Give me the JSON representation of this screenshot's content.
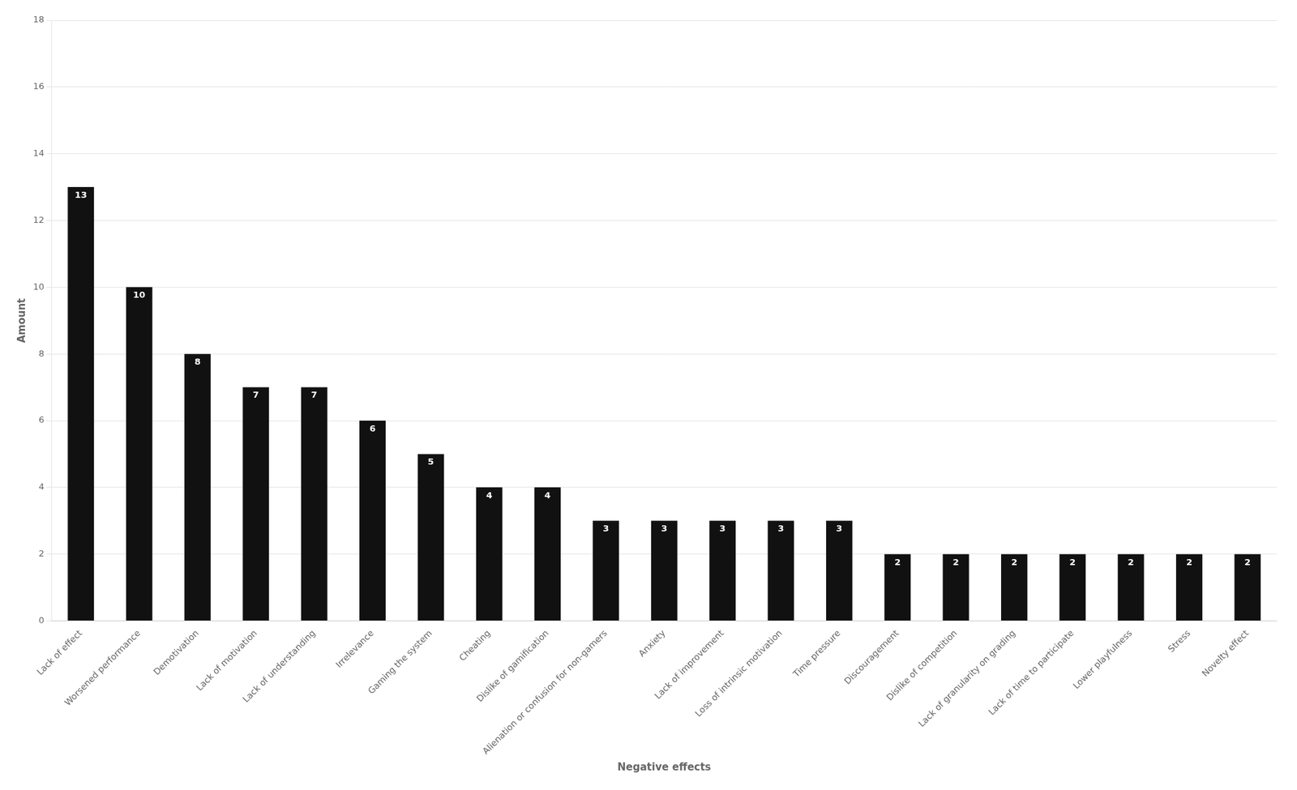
{
  "chart_data": {
    "type": "bar",
    "categories": [
      "Lack of effect",
      "Worsened performance",
      "Demotivation",
      "Lack of motivation",
      "Lack of understanding",
      "Irrelevance",
      "Gaming the system",
      "Cheating",
      "Dislike of gamification",
      "Alienation or confusion for non-gamers",
      "Anxiety",
      "Lack of improvement",
      "Loss of intrinsic motivation",
      "Time pressure",
      "Discouragement",
      "Dislike of competition",
      "Lack of granularity on grading",
      "Lack of time to participate",
      "Lower playfulness",
      "Stress",
      "Novelty effect"
    ],
    "values": [
      13,
      10,
      8,
      7,
      7,
      6,
      5,
      4,
      4,
      3,
      3,
      3,
      3,
      3,
      2,
      2,
      2,
      2,
      2,
      2,
      2
    ],
    "color": "#111111",
    "xlabel": "Negative effects",
    "ylabel": "Amount",
    "ylim": [
      0,
      18
    ],
    "yticks": [
      0,
      2,
      4,
      6,
      8,
      10,
      12,
      14,
      16,
      18
    ],
    "grid": true,
    "data_labels": true
  }
}
